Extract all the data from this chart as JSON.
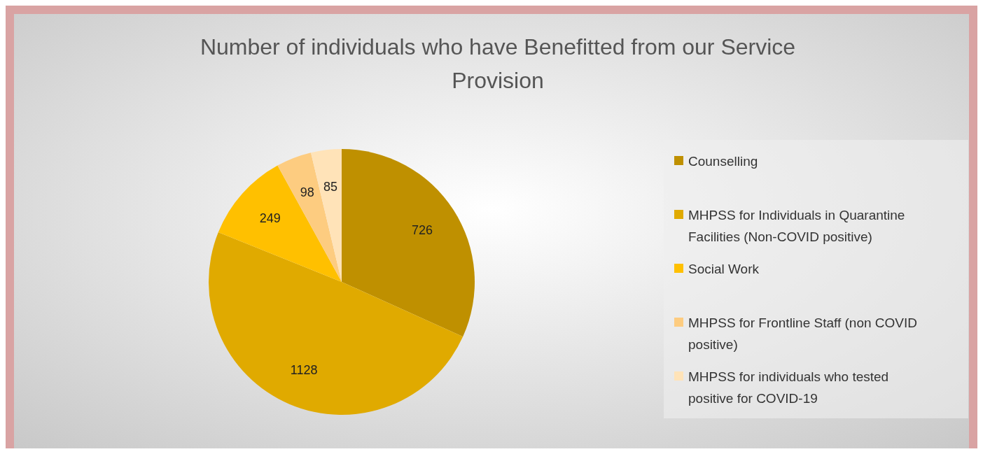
{
  "chart_data": {
    "type": "pie",
    "title": "Number of individuals who have Benefitted from our Service Provision",
    "categories": [
      "Counselling",
      "MHPSS for Individuals in Quarantine Facilities (Non-COVID positive)",
      "Social Work",
      "MHPSS for Frontline Staff (non COVID positive)",
      "MHPSS for individuals who tested positive for COVID-19"
    ],
    "values": [
      726,
      1128,
      249,
      98,
      85
    ],
    "colors": [
      "#bf9000",
      "#e0aa00",
      "#ffc000",
      "#fdcc80",
      "#ffe3b8"
    ],
    "data_labels": true,
    "legend": "right"
  }
}
